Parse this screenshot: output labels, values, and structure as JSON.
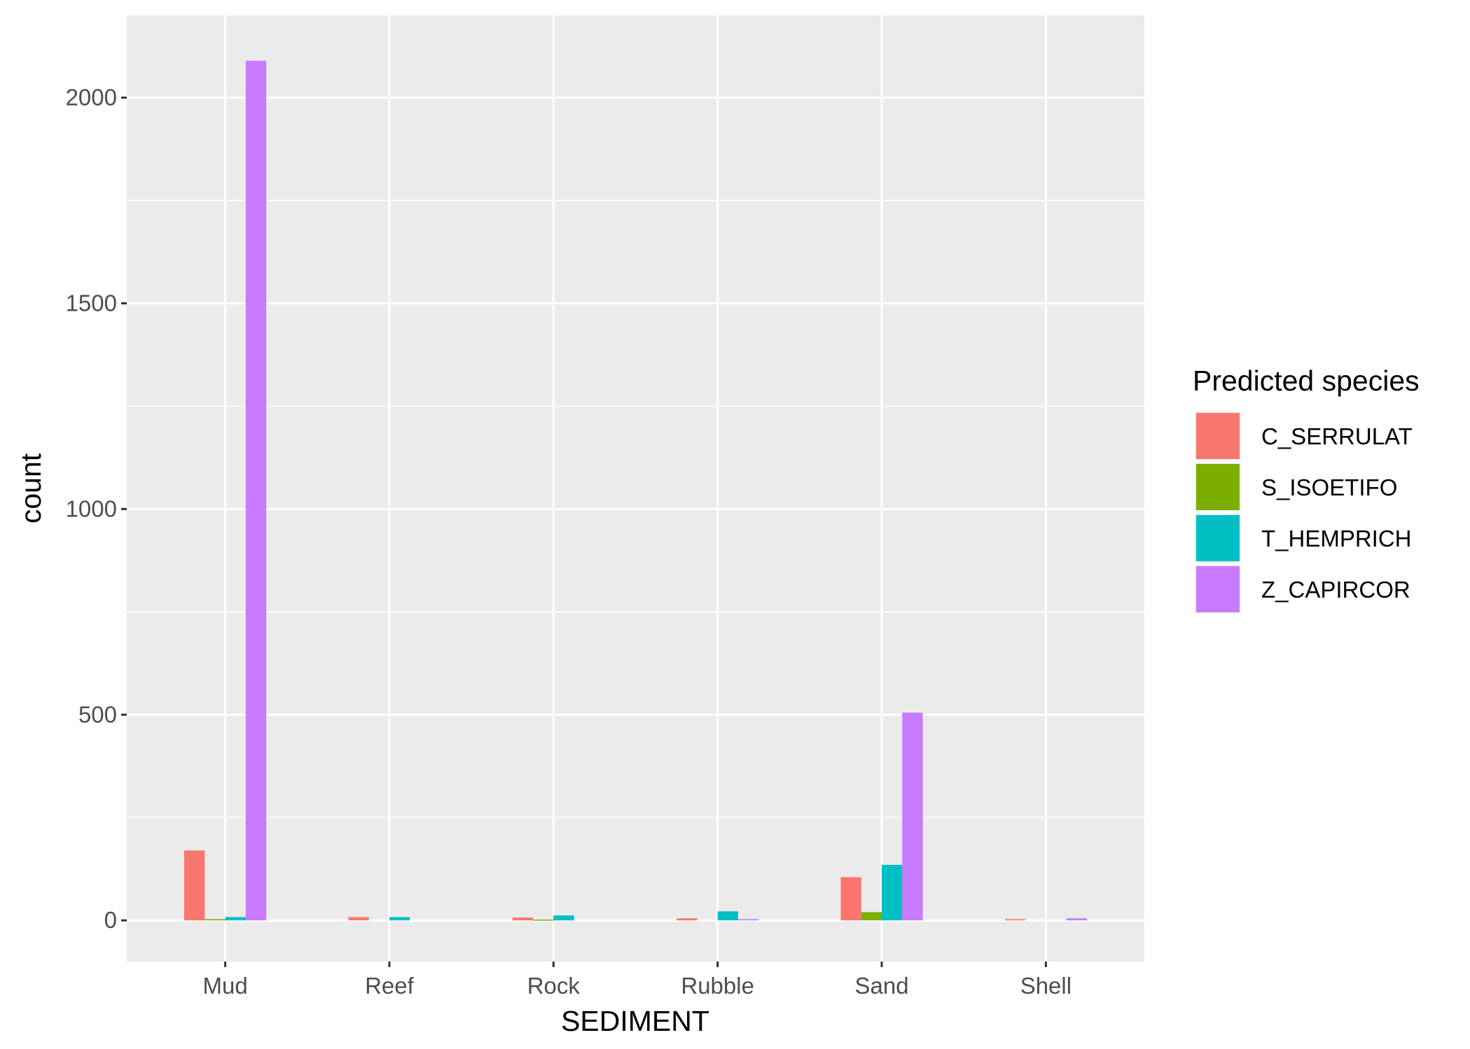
{
  "chart_data": {
    "type": "bar",
    "title": "",
    "xlabel": "SEDIMENT",
    "ylabel": "count",
    "ylim": [
      -100,
      2200
    ],
    "y_ticks": [
      0,
      500,
      1000,
      1500,
      2000
    ],
    "grid": true,
    "legend_placement": "right",
    "legend_title": "Predicted species",
    "categories": [
      "Mud",
      "Reef",
      "Rock",
      "Rubble",
      "Sand",
      "Shell"
    ],
    "series": [
      {
        "name": "C_SERRULAT",
        "color": "#F8766D",
        "values": [
          170,
          8,
          7,
          5,
          105,
          3
        ]
      },
      {
        "name": "S_ISOETIFO",
        "color": "#7CAE00",
        "values": [
          3,
          0,
          2,
          0,
          20,
          0
        ]
      },
      {
        "name": "T_HEMPRICH",
        "color": "#00BFC4",
        "values": [
          8,
          8,
          12,
          22,
          135,
          0
        ]
      },
      {
        "name": "Z_CAPIRCOR",
        "color": "#C77CFF",
        "values": [
          2090,
          0,
          0,
          3,
          505,
          5
        ]
      }
    ]
  }
}
